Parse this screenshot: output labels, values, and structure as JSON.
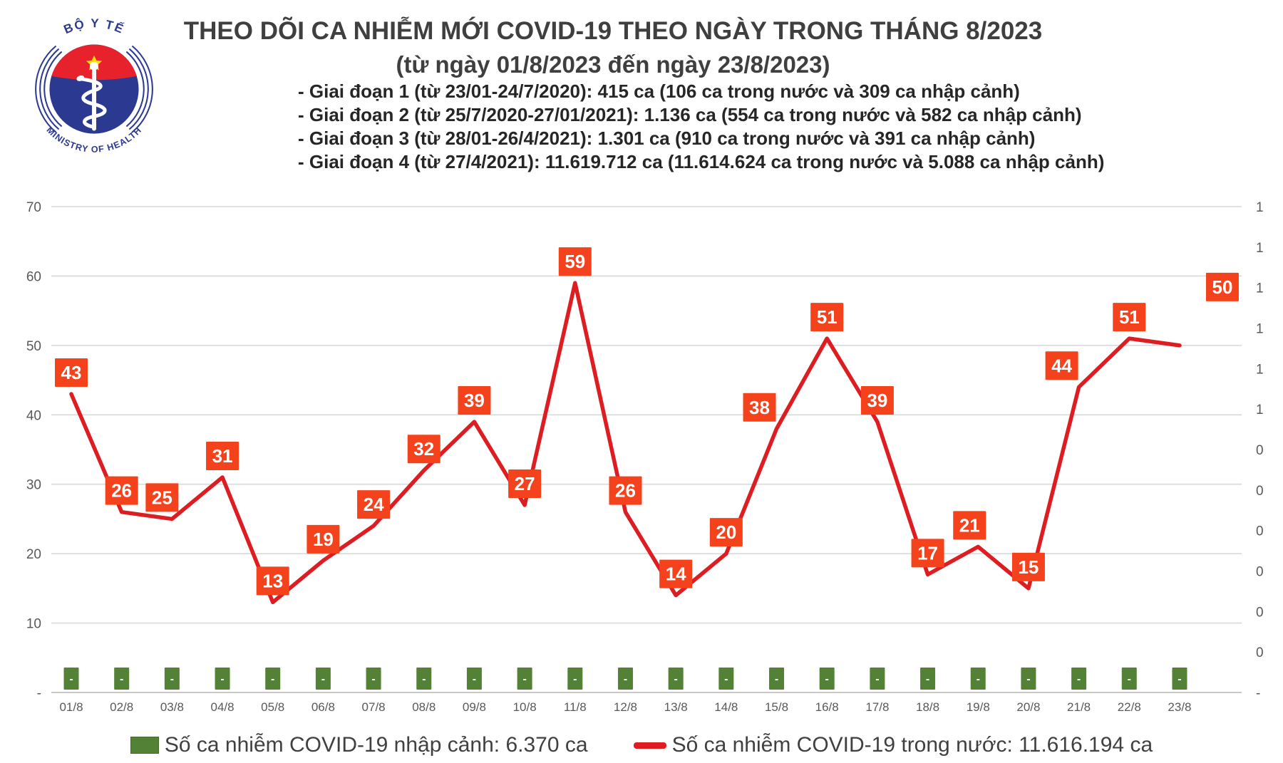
{
  "logo": {
    "top_text": "BỘ Y TẾ",
    "bottom_text": "MINISTRY OF HEALTH"
  },
  "header": {
    "title": "THEO DÕI CA NHIỄM MỚI COVID-19 THEO NGÀY TRONG THÁNG 8/2023",
    "subtitle": "(từ ngày 01/8/2023 đến ngày 23/8/2023)"
  },
  "notes": [
    "- Giai đoạn 1 (từ 23/01-24/7/2020): 415 ca (106 ca trong nước và 309 ca nhập cảnh)",
    "- Giai đoạn 2 (từ 25/7/2020-27/01/2021): 1.136 ca (554 ca trong nước và 582 ca nhập cảnh)",
    "- Giai đoạn 3 (từ 28/01-26/4/2021): 1.301 ca (910 ca trong nước và 391 ca nhập cảnh)",
    "- Giai đoạn 4 (từ 27/4/2021): 11.619.712 ca (11.614.624 ca trong nước và 5.088 ca nhập cảnh)"
  ],
  "legend": {
    "imported_label": "Số ca nhiễm COVID-19 nhập cảnh: 6.370 ca",
    "domestic_label": "Số ca nhiễm COVID-19 trong nước: 11.616.194 ca"
  },
  "colors": {
    "line": "#dd1d21",
    "label_box": "#f4421c",
    "bar": "#538135",
    "grid": "#d9d9d9",
    "axis_text": "#595959"
  },
  "chart_data": {
    "type": "line",
    "title": "THEO DÕI CA NHIỄM MỚI COVID-19 THEO NGÀY TRONG THÁNG 8/2023",
    "categories": [
      "01/8",
      "02/8",
      "03/8",
      "04/8",
      "05/8",
      "06/8",
      "07/8",
      "08/8",
      "09/8",
      "10/8",
      "11/8",
      "12/8",
      "13/8",
      "14/8",
      "15/8",
      "16/8",
      "17/8",
      "18/8",
      "19/8",
      "20/8",
      "21/8",
      "22/8",
      "23/8"
    ],
    "series": [
      {
        "name": "Số ca nhiễm COVID-19 trong nước",
        "type": "line",
        "color": "#dd1d21",
        "values": [
          43,
          26,
          25,
          31,
          13,
          19,
          24,
          32,
          39,
          27,
          59,
          26,
          14,
          20,
          38,
          51,
          39,
          17,
          21,
          15,
          44,
          51,
          50
        ]
      },
      {
        "name": "Số ca nhiễm COVID-19 nhập cảnh",
        "type": "bar",
        "color": "#538135",
        "values": [
          0,
          0,
          0,
          0,
          0,
          0,
          0,
          0,
          0,
          0,
          0,
          0,
          0,
          0,
          0,
          0,
          0,
          0,
          0,
          0,
          0,
          0,
          0
        ],
        "data_label": "-"
      }
    ],
    "left_axis": {
      "labels": [
        "70",
        "60",
        "50",
        "40",
        "30",
        "20",
        "10",
        "-"
      ],
      "values": [
        70,
        60,
        50,
        40,
        30,
        20,
        10,
        0
      ],
      "min": 0,
      "max": 70
    },
    "right_axis": {
      "labels": [
        "1",
        "1",
        "1",
        "1",
        "1",
        "1",
        "0",
        "0",
        "0",
        "0",
        "0",
        "0",
        "-"
      ]
    },
    "grid": true,
    "legend_position": "bottom"
  }
}
